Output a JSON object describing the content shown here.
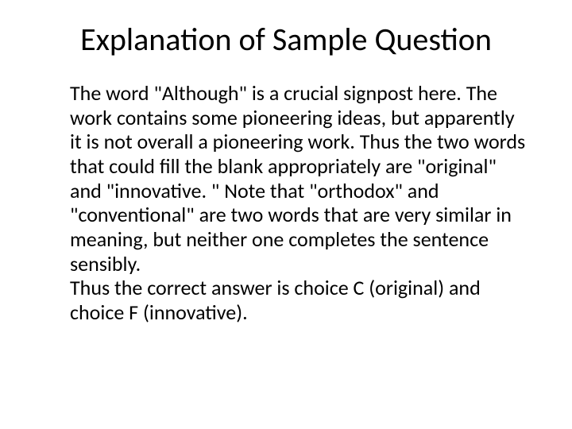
{
  "slide": {
    "title": "Explanation of Sample Question",
    "paragraph1": "The word \"Although\" is a crucial signpost here. The work contains some pioneering ideas, but apparently it is not overall a pioneering work. Thus the two words that could fill the blank appropriately are \"original\" and \"innovative. \" Note that \"orthodox\" and \"conventional\" are two words that are very similar in meaning, but neither one completes the sentence sensibly.",
    "paragraph2": "Thus the correct answer is choice C (original) and choice F (innovative).",
    "title_fontsize": 40,
    "body_fontsize": 26,
    "text_color": "#000000",
    "background_color": "#ffffff",
    "font_family": "Calibri"
  }
}
